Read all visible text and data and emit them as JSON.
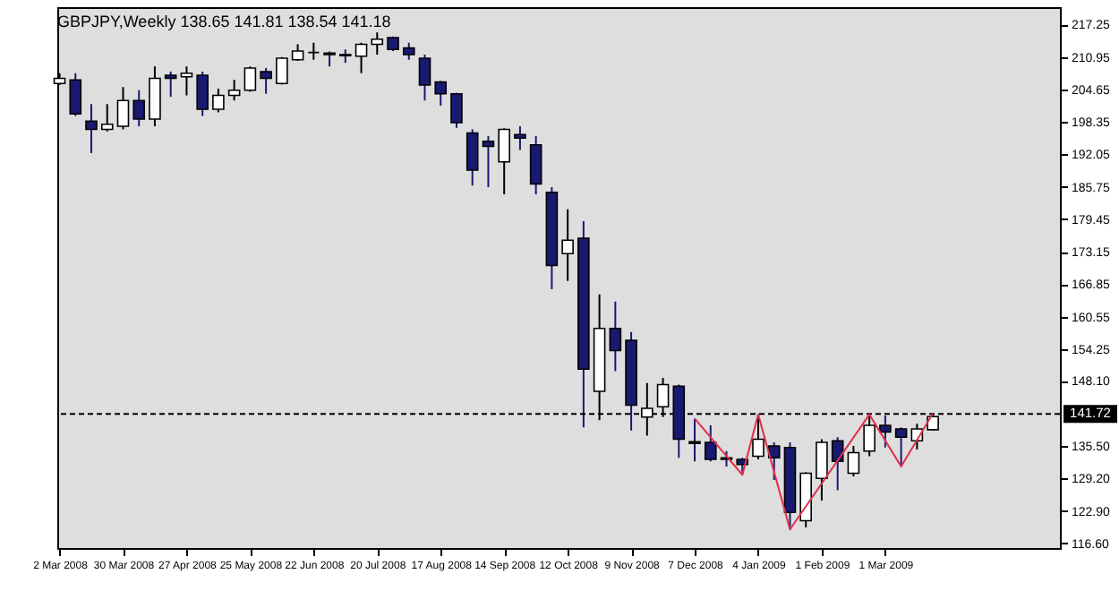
{
  "chart_data": {
    "type": "candlestick",
    "title": "GBPJPY,Weekly  138.65 141.81 138.54 141.18",
    "x": [
      "2008-03-02",
      "2008-03-09",
      "2008-03-16",
      "2008-03-23",
      "2008-03-30",
      "2008-04-06",
      "2008-04-13",
      "2008-04-20",
      "2008-04-27",
      "2008-05-04",
      "2008-05-11",
      "2008-05-18",
      "2008-05-25",
      "2008-06-01",
      "2008-06-08",
      "2008-06-15",
      "2008-06-22",
      "2008-06-29",
      "2008-07-06",
      "2008-07-13",
      "2008-07-20",
      "2008-07-27",
      "2008-08-03",
      "2008-08-10",
      "2008-08-17",
      "2008-08-24",
      "2008-08-31",
      "2008-09-07",
      "2008-09-14",
      "2008-09-21",
      "2008-09-28",
      "2008-10-05",
      "2008-10-12",
      "2008-10-19",
      "2008-10-26",
      "2008-11-02",
      "2008-11-09",
      "2008-11-16",
      "2008-11-23",
      "2008-11-30",
      "2008-12-07",
      "2008-12-14",
      "2008-12-21",
      "2008-12-28",
      "2009-01-04",
      "2009-01-11",
      "2009-01-18",
      "2009-01-25",
      "2009-02-01",
      "2009-02-08",
      "2009-02-15",
      "2009-02-22",
      "2009-03-01",
      "2009-03-08",
      "2009-03-15",
      "2009-03-22"
    ],
    "ohlc": [
      [
        205.8,
        207.8,
        205.5,
        206.8
      ],
      [
        206.5,
        207.8,
        199.5,
        199.9
      ],
      [
        198.5,
        201.8,
        192.3,
        196.9
      ],
      [
        196.9,
        201.8,
        196.5,
        197.9
      ],
      [
        197.5,
        205.1,
        196.9,
        202.5
      ],
      [
        202.5,
        204.5,
        197.5,
        198.9
      ],
      [
        198.9,
        209.1,
        197.5,
        206.8
      ],
      [
        207.4,
        208.1,
        203.2,
        206.8
      ],
      [
        207.1,
        209.1,
        203.5,
        207.8
      ],
      [
        207.4,
        208.1,
        199.5,
        200.8
      ],
      [
        200.8,
        204.8,
        200.2,
        203.5
      ],
      [
        203.5,
        206.5,
        202.5,
        204.5
      ],
      [
        204.5,
        209.1,
        204.2,
        208.8
      ],
      [
        208.1,
        208.8,
        203.8,
        206.8
      ],
      [
        205.8,
        210.9,
        205.6,
        210.7
      ],
      [
        210.4,
        213.4,
        210.2,
        212.1
      ],
      [
        211.8,
        213.7,
        210.4,
        211.8
      ],
      [
        211.7,
        212.0,
        209.1,
        211.4
      ],
      [
        211.4,
        212.4,
        209.8,
        211.2
      ],
      [
        211.1,
        213.7,
        207.8,
        213.4
      ],
      [
        213.4,
        215.7,
        211.4,
        214.4
      ],
      [
        214.7,
        214.9,
        212.1,
        212.4
      ],
      [
        212.7,
        213.7,
        210.4,
        211.4
      ],
      [
        210.7,
        211.4,
        202.5,
        205.5
      ],
      [
        206.1,
        206.3,
        201.5,
        203.8
      ],
      [
        203.8,
        204.0,
        197.2,
        198.2
      ],
      [
        196.2,
        196.9,
        186.0,
        189.0
      ],
      [
        194.6,
        195.6,
        185.7,
        193.6
      ],
      [
        190.6,
        197.1,
        184.3,
        196.9
      ],
      [
        195.9,
        197.5,
        192.9,
        195.2
      ],
      [
        193.9,
        195.6,
        184.3,
        186.3
      ],
      [
        184.7,
        185.7,
        165.9,
        170.5
      ],
      [
        172.8,
        181.4,
        167.5,
        175.4
      ],
      [
        175.8,
        179.1,
        139.1,
        150.4
      ],
      [
        146.1,
        164.9,
        140.5,
        158.3
      ],
      [
        158.3,
        163.5,
        150.0,
        154.0
      ],
      [
        156.0,
        157.6,
        138.5,
        143.4
      ],
      [
        141.1,
        147.7,
        137.5,
        142.8
      ],
      [
        143.1,
        148.7,
        141.1,
        147.4
      ],
      [
        147.1,
        147.4,
        133.2,
        136.8
      ],
      [
        136.3,
        140.8,
        132.5,
        136.0
      ],
      [
        136.2,
        139.5,
        132.5,
        132.9
      ],
      [
        133.2,
        134.5,
        131.5,
        132.9
      ],
      [
        132.9,
        133.2,
        129.9,
        131.9
      ],
      [
        133.5,
        141.6,
        132.9,
        136.8
      ],
      [
        135.5,
        136.2,
        128.9,
        133.2
      ],
      [
        135.2,
        136.2,
        119.3,
        122.6
      ],
      [
        121.0,
        130.4,
        119.7,
        130.2
      ],
      [
        129.2,
        136.8,
        124.9,
        136.2
      ],
      [
        136.5,
        137.2,
        126.9,
        132.5
      ],
      [
        130.2,
        135.5,
        129.6,
        134.2
      ],
      [
        134.5,
        141.6,
        133.5,
        139.5
      ],
      [
        139.5,
        141.4,
        135.2,
        138.2
      ],
      [
        138.8,
        139.1,
        131.5,
        137.2
      ],
      [
        136.5,
        139.8,
        134.8,
        138.8
      ],
      [
        138.65,
        141.81,
        138.54,
        141.18
      ]
    ],
    "colors": [
      "#ffffff",
      "#191970",
      "#191970",
      "#ffffff",
      "#ffffff",
      "#191970",
      "#ffffff",
      "#191970",
      "#ffffff",
      "#191970",
      "#ffffff",
      "#ffffff",
      "#ffffff",
      "#191970",
      "#ffffff",
      "#ffffff",
      "#000000",
      "#191970",
      "#191970",
      "#ffffff",
      "#ffffff",
      "#191970",
      "#191970",
      "#191970",
      "#191970",
      "#191970",
      "#191970",
      "#191970",
      "#ffffff",
      "#191970",
      "#191970",
      "#191970",
      "#ffffff",
      "#191970",
      "#ffffff",
      "#191970",
      "#191970",
      "#ffffff",
      "#ffffff",
      "#191970",
      "#191970",
      "#191970",
      "#191970",
      "#191970",
      "#ffffff",
      "#191970",
      "#191970",
      "#ffffff",
      "#ffffff",
      "#191970",
      "#ffffff",
      "#ffffff",
      "#191970",
      "#191970",
      "#ffffff",
      "#ffffff"
    ],
    "series": [
      {
        "type": "line",
        "color": "#e0304a",
        "x": [
          "2008-12-07",
          "2008-12-28",
          "2009-01-04",
          "2009-01-18",
          "2009-02-22",
          "2009-03-08",
          "2009-03-22"
        ],
        "values": [
          140.8,
          129.9,
          141.6,
          119.3,
          141.6,
          131.5,
          141.81
        ]
      }
    ],
    "xlim": [
      "2008-03-01",
      "2009-05-17"
    ],
    "xticks": [
      {
        "value": "2008-03-02",
        "label": "2 Mar 2008"
      },
      {
        "value": "2008-03-30",
        "label": "30 Mar 2008"
      },
      {
        "value": "2008-04-27",
        "label": "27 Apr 2008"
      },
      {
        "value": "2008-05-25",
        "label": "25 May 2008"
      },
      {
        "value": "2008-06-22",
        "label": "22 Jun 2008"
      },
      {
        "value": "2008-07-20",
        "label": "20 Jul 2008"
      },
      {
        "value": "2008-08-17",
        "label": "17 Aug 2008"
      },
      {
        "value": "2008-09-14",
        "label": "14 Sep 2008"
      },
      {
        "value": "2008-10-12",
        "label": "12 Oct 2008"
      },
      {
        "value": "2008-11-09",
        "label": "9 Nov 2008"
      },
      {
        "value": "2008-12-07",
        "label": "7 Dec 2008"
      },
      {
        "value": "2009-01-04",
        "label": "4 Jan 2009"
      },
      {
        "value": "2009-02-01",
        "label": "1 Feb 2009"
      },
      {
        "value": "2009-03-01",
        "label": "1 Mar 2009"
      }
    ],
    "ylim": [
      115.7,
      220.6
    ],
    "yticks": [
      {
        "value": 116.6,
        "label": "116.60"
      },
      {
        "value": 122.9,
        "label": "122.90"
      },
      {
        "value": 129.2,
        "label": "129.20"
      },
      {
        "value": 135.5,
        "label": "135.50"
      },
      {
        "value": 148.1,
        "label": "148.10"
      },
      154.25,
      160.55,
      166.85,
      173.15,
      179.45,
      185.75,
      192.05,
      198.35,
      204.65,
      210.95,
      217.25
    ],
    "ref_lines": [
      {
        "axis": "y",
        "value": 141.72,
        "label": "141.72",
        "line_style": "dashed",
        "color": "#000000"
      }
    ]
  }
}
